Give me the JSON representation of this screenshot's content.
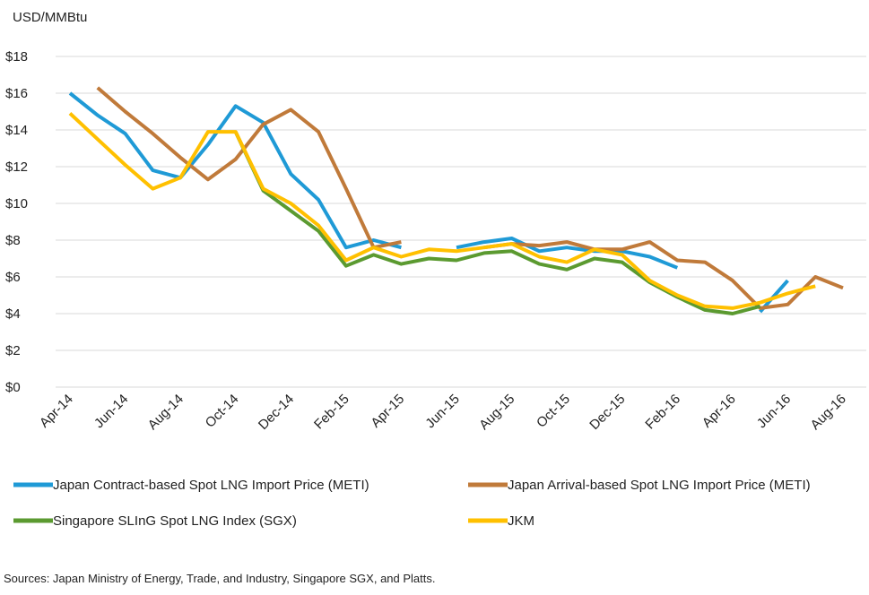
{
  "chart_data": {
    "type": "line",
    "y_axis_label": "USD/MMBtu",
    "note": "Sources: Japan Ministry of Energy, Trade, and Industry, Singapore SGX, and Platts.",
    "categories": [
      "Apr-14",
      null,
      "Jun-14",
      null,
      "Aug-14",
      null,
      "Oct-14",
      null,
      "Dec-14",
      null,
      "Feb-15",
      null,
      "Apr-15",
      null,
      "Jun-15",
      null,
      "Aug-15",
      null,
      "Oct-15",
      null,
      "Dec-15",
      null,
      "Feb-16",
      null,
      "Apr-16",
      null,
      "Jun-16",
      null,
      "Aug-16"
    ],
    "ylim": [
      0,
      18
    ],
    "yticks": [
      {
        "value": 0,
        "label": "$0"
      },
      {
        "value": 2,
        "label": "$2"
      },
      {
        "value": 4,
        "label": "$4"
      },
      {
        "value": 6,
        "label": "$6"
      },
      {
        "value": 8,
        "label": "$8"
      },
      {
        "value": 10,
        "label": "$10"
      },
      {
        "value": 12,
        "label": "$12"
      },
      {
        "value": 14,
        "label": "$14"
      },
      {
        "value": 16,
        "label": "$16"
      },
      {
        "value": 18,
        "label": "$18"
      }
    ],
    "grid": true,
    "series": [
      {
        "name": "Japan Contract-based Spot LNG Import Price (METI)",
        "color": "#1f9ad6",
        "values": [
          16.0,
          14.8,
          13.8,
          11.8,
          11.4,
          13.2,
          15.3,
          14.4,
          11.6,
          10.2,
          7.6,
          8.0,
          7.6,
          null,
          7.6,
          7.9,
          8.1,
          7.4,
          7.6,
          7.4,
          7.4,
          7.1,
          6.5,
          null,
          null,
          4.1,
          5.8,
          null,
          null
        ]
      },
      {
        "name": "Japan Arrival-based Spot LNG Import Price (METI)",
        "color": "#c07a3a",
        "values": [
          null,
          16.3,
          15.0,
          13.8,
          12.5,
          11.3,
          12.4,
          14.3,
          15.1,
          13.9,
          10.8,
          7.6,
          7.9,
          null,
          null,
          7.6,
          7.8,
          7.7,
          7.9,
          7.5,
          7.5,
          7.9,
          6.9,
          6.8,
          5.8,
          4.3,
          4.5,
          6.0,
          5.4
        ]
      },
      {
        "name": "Singapore SLInG Spot LNG Index (SGX)",
        "color": "#5b9a30",
        "values": [
          null,
          null,
          null,
          null,
          null,
          null,
          13.9,
          10.7,
          9.6,
          8.5,
          6.6,
          7.2,
          6.7,
          7.0,
          6.9,
          7.3,
          7.4,
          6.7,
          6.4,
          7.0,
          6.8,
          5.7,
          4.9,
          4.2,
          4.0,
          4.4,
          null,
          null,
          null
        ]
      },
      {
        "name": "JKM",
        "color": "#ffc000",
        "values": [
          14.9,
          13.5,
          12.1,
          10.8,
          11.4,
          13.9,
          13.9,
          10.8,
          10.0,
          8.8,
          6.9,
          7.6,
          7.1,
          7.5,
          7.4,
          7.6,
          7.8,
          7.1,
          6.8,
          7.5,
          7.2,
          5.8,
          5.0,
          4.4,
          4.3,
          4.6,
          5.1,
          5.5,
          null
        ]
      }
    ],
    "legend": "bottom"
  }
}
